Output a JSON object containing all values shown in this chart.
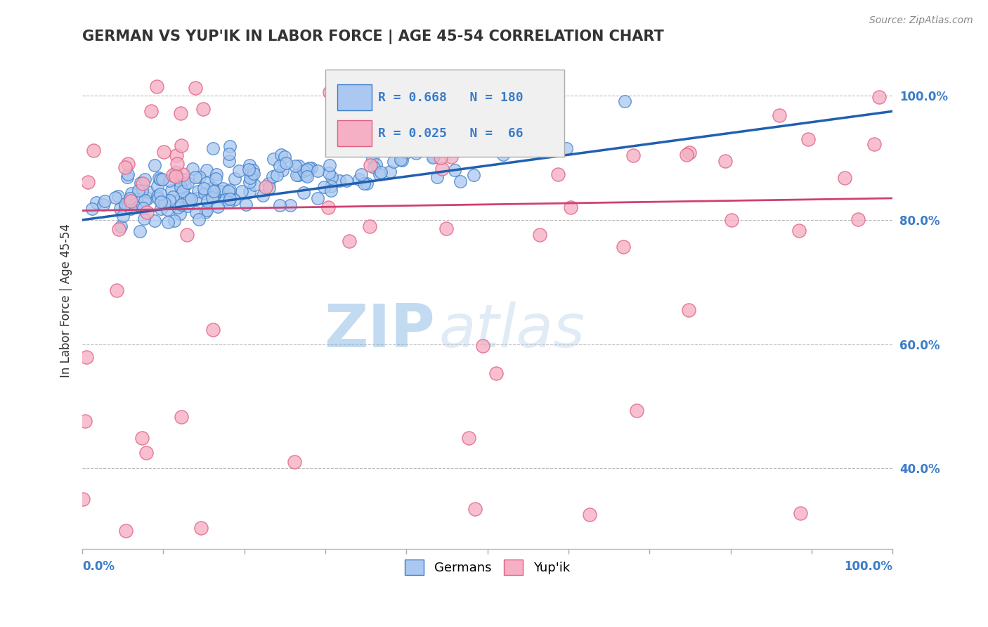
{
  "title": "GERMAN VS YUP'IK IN LABOR FORCE | AGE 45-54 CORRELATION CHART",
  "source_text": "Source: ZipAtlas.com",
  "ylabel": "In Labor Force | Age 45-54",
  "ytick_values": [
    0.4,
    0.6,
    0.8,
    1.0
  ],
  "watermark_zip": "ZIP",
  "watermark_atlas": "atlas",
  "legend_german_R": "R = 0.668",
  "legend_german_N": "N = 180",
  "legend_yupik_R": "R = 0.025",
  "legend_yupik_N": "N =  66",
  "german_face_color": "#aac8f0",
  "german_edge_color": "#3a7cc8",
  "german_line_color": "#2060b0",
  "yupik_face_color": "#f5b0c5",
  "yupik_edge_color": "#e06080",
  "yupik_line_color": "#d04070",
  "background_color": "#ffffff",
  "grid_color": "#bbbbbb",
  "title_color": "#333333",
  "axis_label_color": "#3a7cc8",
  "legend_text_color": "#3a7cc8",
  "source_color": "#888888",
  "xlim": [
    0.0,
    1.0
  ],
  "ylim": [
    0.27,
    1.07
  ],
  "german_line_start_y": 0.8,
  "german_line_end_y": 0.975,
  "yupik_line_start_y": 0.815,
  "yupik_line_end_y": 0.835
}
